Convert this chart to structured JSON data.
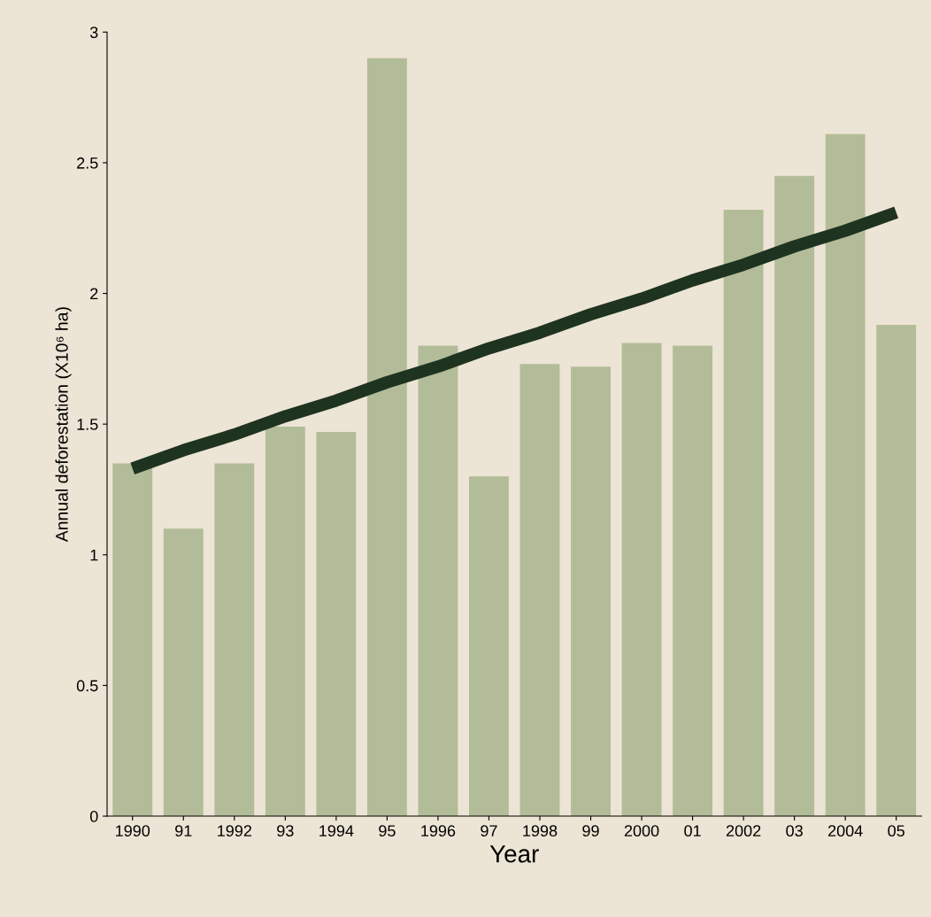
{
  "chart_data": {
    "type": "bar",
    "xlabel": "Year",
    "ylabel": "Annual deforestation (X10⁶ ha)",
    "categories": [
      "1990",
      "91",
      "1992",
      "93",
      "1994",
      "95",
      "1996",
      "97",
      "1998",
      "99",
      "2000",
      "01",
      "2002",
      "03",
      "2004",
      "05"
    ],
    "series": [
      {
        "color": "#b3bc98",
        "values": [
          1.35,
          1.1,
          1.35,
          1.49,
          1.47,
          2.9,
          1.8,
          1.3,
          1.73,
          1.72,
          1.81,
          1.8,
          2.32,
          2.45,
          2.61,
          1.88
        ]
      },
      {
        "type": "line",
        "color": "#1e3320",
        "values": [
          1.33,
          1.4,
          1.46,
          1.53,
          1.59,
          1.66,
          1.72,
          1.79,
          1.85,
          1.92,
          1.98,
          2.05,
          2.11,
          2.18,
          2.24,
          2.31
        ]
      }
    ],
    "ylim": [
      0,
      3
    ],
    "yticks": [
      0,
      0.5,
      1,
      1.5,
      2,
      2.5,
      3
    ],
    "grid": false,
    "legend": false
  }
}
